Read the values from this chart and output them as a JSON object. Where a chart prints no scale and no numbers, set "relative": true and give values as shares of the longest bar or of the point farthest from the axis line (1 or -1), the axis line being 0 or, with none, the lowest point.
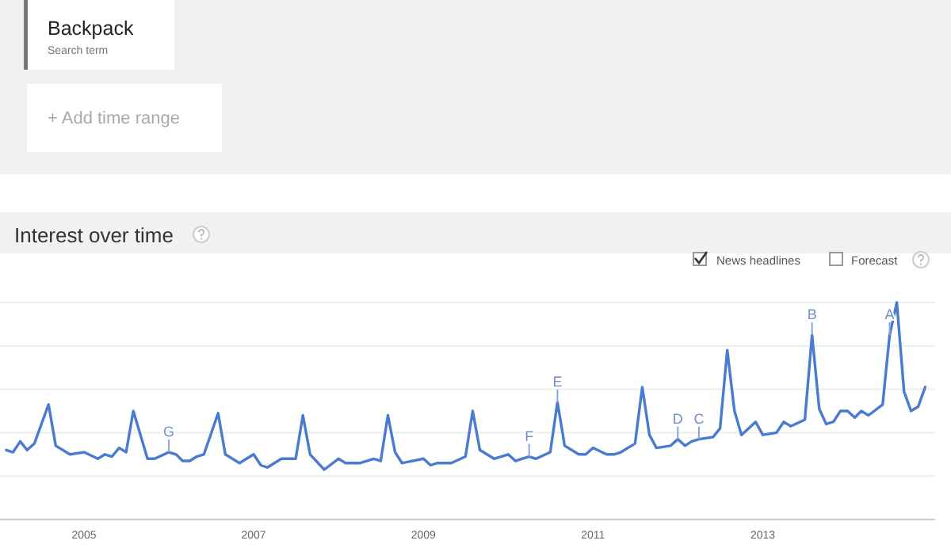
{
  "chart_data": {
    "type": "line",
    "title": "Interest over time",
    "relative": true,
    "grid": true,
    "annotations": [
      "Backpack",
      "Search term",
      "+ Add time range",
      "News headlines",
      "Forecast",
      {
        "text": "G",
        "x": "2006-01",
        "y": 0.31
      },
      {
        "text": "F",
        "x": "2010-04",
        "y": 0.29
      },
      {
        "text": "E",
        "x": "2010-08",
        "y": 0.54
      },
      {
        "text": "D",
        "x": "2012-01",
        "y": 0.37
      },
      {
        "text": "C",
        "x": "2012-04",
        "y": 0.37
      },
      {
        "text": "B",
        "x": "2013-08",
        "y": 0.85
      },
      {
        "text": "A",
        "x": "2014-07",
        "y": 0.85
      }
    ],
    "xlim": [
      "2004-01-05",
      "2015-01-13"
    ],
    "xticks": [
      "2005",
      "2007",
      "2009",
      "2011",
      "2013"
    ],
    "x": [
      "2004-02",
      "2004-03",
      "2004-04",
      "2004-05",
      "2004-06",
      "2004-08",
      "2004-09",
      "2004-11",
      "2005-01",
      "2005-03",
      "2005-04",
      "2005-05",
      "2005-06",
      "2005-07",
      "2005-08",
      "2005-10",
      "2005-11",
      "2006-01",
      "2006-02",
      "2006-03",
      "2006-04",
      "2006-05",
      "2006-06",
      "2006-08",
      "2006-09",
      "2006-11",
      "2007-01",
      "2007-02",
      "2007-03",
      "2007-05",
      "2007-07",
      "2007-08",
      "2007-09",
      "2007-11",
      "2008-01",
      "2008-02",
      "2008-04",
      "2008-06",
      "2008-07",
      "2008-08",
      "2008-09",
      "2008-10",
      "2009-01",
      "2009-02",
      "2009-03",
      "2009-05",
      "2009-07",
      "2009-08",
      "2009-09",
      "2009-11",
      "2010-01",
      "2010-02",
      "2010-03",
      "2010-04",
      "2010-05",
      "2010-07",
      "2010-08",
      "2010-09",
      "2010-11",
      "2010-12",
      "2011-01",
      "2011-03",
      "2011-04",
      "2011-05",
      "2011-07",
      "2011-08",
      "2011-09",
      "2011-10",
      "2011-12",
      "2012-01",
      "2012-02",
      "2012-03",
      "2012-04",
      "2012-06",
      "2012-07",
      "2012-08",
      "2012-09",
      "2012-10",
      "2012-11",
      "2012-12",
      "2013-01",
      "2013-03",
      "2013-04",
      "2013-05",
      "2013-07",
      "2013-08",
      "2013-09",
      "2013-10",
      "2013-11",
      "2013-12",
      "2014-01",
      "2014-02",
      "2014-03",
      "2014-04",
      "2014-06",
      "2014-07",
      "2014-08",
      "2014-09",
      "2014-10",
      "2014-11",
      "2014-12"
    ],
    "series": [
      {
        "color": "#4a7bd0",
        "values": [
          0.32,
          0.31,
          0.36,
          0.32,
          0.35,
          0.53,
          0.34,
          0.3,
          0.31,
          0.28,
          0.3,
          0.29,
          0.33,
          0.31,
          0.5,
          0.28,
          0.28,
          0.31,
          0.3,
          0.27,
          0.27,
          0.29,
          0.3,
          0.49,
          0.3,
          0.26,
          0.3,
          0.25,
          0.24,
          0.28,
          0.28,
          0.48,
          0.3,
          0.23,
          0.28,
          0.26,
          0.26,
          0.28,
          0.27,
          0.48,
          0.31,
          0.26,
          0.28,
          0.25,
          0.26,
          0.26,
          0.29,
          0.5,
          0.32,
          0.28,
          0.3,
          0.27,
          0.28,
          0.29,
          0.28,
          0.31,
          0.54,
          0.34,
          0.3,
          0.3,
          0.33,
          0.3,
          0.3,
          0.31,
          0.35,
          0.61,
          0.39,
          0.33,
          0.34,
          0.37,
          0.34,
          0.36,
          0.37,
          0.38,
          0.42,
          0.78,
          0.5,
          0.39,
          0.42,
          0.45,
          0.39,
          0.4,
          0.45,
          0.43,
          0.46,
          0.85,
          0.51,
          0.44,
          0.45,
          0.5,
          0.5,
          0.47,
          0.5,
          0.48,
          0.53,
          0.85,
          1.0,
          0.59,
          0.5,
          0.52,
          0.61
        ]
      }
    ]
  }
}
